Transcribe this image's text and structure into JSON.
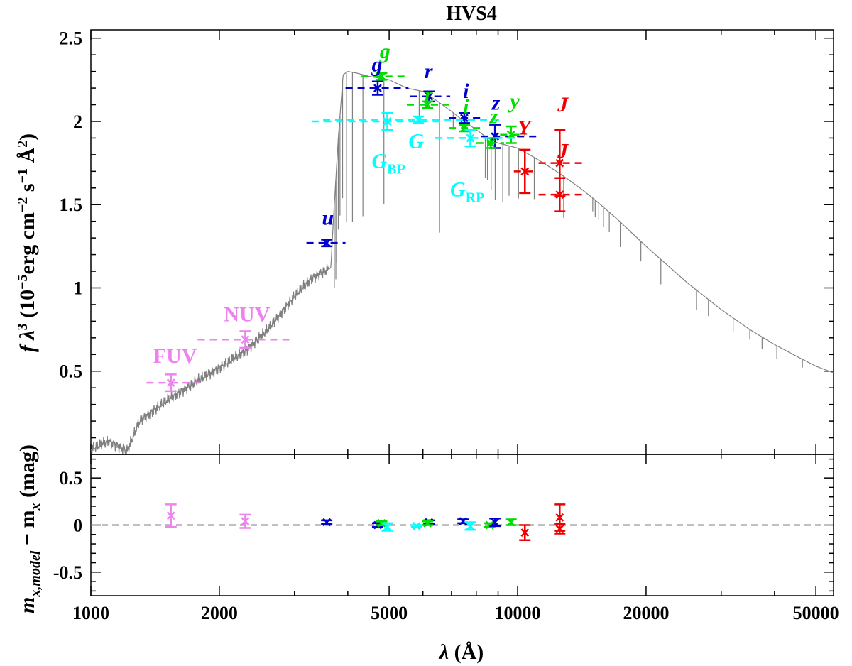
{
  "chart_data": [
    {
      "type": "line",
      "title": "HVS4",
      "xlabel": "λ (Å)",
      "ylabel": "f λ³ (10⁻⁵erg cm⁻² s⁻¹ Å²)",
      "xscale": "log",
      "xlim": [
        1000,
        55000
      ],
      "ylim": [
        0,
        2.55
      ],
      "xticks": [
        1000,
        2000,
        5000,
        10000,
        20000,
        50000
      ],
      "xtick_labels": [
        "1000",
        "2000",
        "5000",
        "10000",
        "20000",
        "50000"
      ],
      "yticks": [
        0.5,
        1,
        1.5,
        2,
        2.5
      ],
      "ytick_labels": [
        "0.5",
        "1",
        "1.5",
        "2",
        "2.5"
      ],
      "model_spectrum": {
        "name": "model",
        "color": "#808080",
        "x": [
          1000,
          1100,
          1216,
          1300,
          1500,
          1800,
          2000,
          2300,
          2600,
          3000,
          3300,
          3650,
          3700,
          3800,
          3900,
          4000,
          4200,
          4500,
          5000,
          5500,
          6000,
          6500,
          7000,
          7500,
          8000,
          8500,
          9000,
          10000,
          11000,
          12000,
          13000,
          14000,
          15000,
          17000,
          20000,
          25000,
          30000,
          35000,
          40000,
          45000,
          50000,
          55000
        ],
        "y": [
          0.03,
          0.08,
          0.02,
          0.2,
          0.32,
          0.45,
          0.52,
          0.62,
          0.75,
          0.95,
          1.06,
          1.12,
          1.4,
          1.9,
          2.28,
          2.3,
          2.29,
          2.27,
          2.25,
          2.2,
          2.18,
          2.12,
          2.06,
          2.0,
          1.95,
          1.9,
          1.87,
          1.84,
          1.78,
          1.72,
          1.66,
          1.6,
          1.54,
          1.42,
          1.25,
          1.03,
          0.87,
          0.75,
          0.66,
          0.59,
          0.53,
          0.49
        ]
      },
      "photometry": [
        {
          "band": "FUV",
          "color": "#ee82ee",
          "x": 1540,
          "y": 0.43,
          "yerr": 0.05,
          "xerr": [
            1350,
            1800
          ]
        },
        {
          "band": "NUV",
          "color": "#ee82ee",
          "x": 2300,
          "y": 0.69,
          "yerr": 0.05,
          "xerr": [
            1780,
            2980
          ]
        },
        {
          "band": "u",
          "color": "#0000cc",
          "x": 3570,
          "y": 1.27,
          "yerr": 0.02,
          "xerr": [
            3200,
            3950
          ]
        },
        {
          "band": "g",
          "color": "#0000cc",
          "x": 4700,
          "y": 2.2,
          "yerr": 0.04,
          "xerr": [
            3950,
            5550
          ]
        },
        {
          "band": "g",
          "color": "#00dd00",
          "x": 4800,
          "y": 2.27,
          "yerr": 0.02,
          "xerr": [
            4300,
            5450
          ]
        },
        {
          "band": "r",
          "color": "#0000cc",
          "x": 6200,
          "y": 2.15,
          "yerr": 0.03,
          "xerr": [
            5600,
            6950
          ]
        },
        {
          "band": "r",
          "color": "#00dd00",
          "x": 6150,
          "y": 2.1,
          "yerr": 0.02,
          "xerr": [
            5500,
            6900
          ]
        },
        {
          "band": "i",
          "color": "#0000cc",
          "x": 7500,
          "y": 2.02,
          "yerr": 0.03,
          "xerr": [
            6900,
            8250
          ]
        },
        {
          "band": "i",
          "color": "#00dd00",
          "x": 7500,
          "y": 1.96,
          "yerr": 0.02,
          "xerr": [
            6900,
            8250
          ]
        },
        {
          "band": "z",
          "color": "#0000cc",
          "x": 8850,
          "y": 1.91,
          "yerr": 0.07,
          "xerr": [
            8200,
            11300
          ]
        },
        {
          "band": "z",
          "color": "#00dd00",
          "x": 8650,
          "y": 1.87,
          "yerr": 0.03,
          "xerr": [
            8000,
            9300
          ]
        },
        {
          "band": "y",
          "color": "#00dd00",
          "x": 9650,
          "y": 1.92,
          "yerr": 0.05,
          "xerr": [
            9100,
            10400
          ]
        },
        {
          "band": "G_BP",
          "color": "#00ffff",
          "x": 4950,
          "y": 2.0,
          "yerr": 0.05,
          "xerr": [
            3300,
            6700
          ]
        },
        {
          "band": "G",
          "color": "#00ffff",
          "x": 5850,
          "y": 2.01,
          "yerr": 0.02,
          "xerr": [
            3500,
            9300
          ]
        },
        {
          "band": "G_RP",
          "color": "#00ffff",
          "x": 7750,
          "y": 1.9,
          "yerr": 0.05,
          "xerr": [
            6400,
            10000
          ]
        },
        {
          "band": "Y",
          "color": "#ee0000",
          "x": 10400,
          "y": 1.7,
          "yerr": 0.13,
          "xerr": [
            9800,
            11000
          ]
        },
        {
          "band": "J",
          "color": "#ee0000",
          "x": 12550,
          "y": 1.75,
          "yerr": 0.2,
          "xerr": [
            11200,
            14300
          ]
        },
        {
          "band": "J",
          "color": "#ee0000",
          "x": 12550,
          "y": 1.56,
          "yerr": 0.1,
          "xerr": [
            11200,
            14300
          ]
        }
      ],
      "band_labels": [
        {
          "text": "FUV",
          "color": "#ee82ee",
          "x": 1400,
          "y": 0.55,
          "italic": false
        },
        {
          "text": "NUV",
          "color": "#ee82ee",
          "x": 2050,
          "y": 0.8,
          "italic": false
        },
        {
          "text": "u",
          "color": "#0000cc",
          "x": 3480,
          "y": 1.38,
          "italic": true
        },
        {
          "text": "g",
          "color": "#0000cc",
          "x": 4550,
          "y": 2.3,
          "italic": true
        },
        {
          "text": "g",
          "color": "#00dd00",
          "x": 4750,
          "y": 2.38,
          "italic": true
        },
        {
          "text": "r",
          "color": "#0000cc",
          "x": 6050,
          "y": 2.26,
          "italic": true
        },
        {
          "text": "r",
          "color": "#00dd00",
          "x": 6050,
          "y": 2.12,
          "italic": true
        },
        {
          "text": "i",
          "color": "#0000cc",
          "x": 7450,
          "y": 2.14,
          "italic": true
        },
        {
          "text": "i",
          "color": "#00dd00",
          "x": 7450,
          "y": 2.05,
          "italic": true
        },
        {
          "text": "z",
          "color": "#0000cc",
          "x": 8700,
          "y": 2.07,
          "italic": true
        },
        {
          "text": "z",
          "color": "#00dd00",
          "x": 8600,
          "y": 1.99,
          "italic": true
        },
        {
          "text": "y",
          "color": "#00dd00",
          "x": 9600,
          "y": 2.08,
          "italic": true
        },
        {
          "text": "G",
          "sub": "BP",
          "color": "#00ffff",
          "x": 4550,
          "y": 1.72,
          "italic": true
        },
        {
          "text": "G",
          "sub": "",
          "color": "#00ffff",
          "x": 5550,
          "y": 1.84,
          "italic": true
        },
        {
          "text": "G",
          "sub": "RP",
          "color": "#00ffff",
          "x": 6950,
          "y": 1.55,
          "italic": true
        },
        {
          "text": "Y",
          "color": "#ee0000",
          "x": 10000,
          "y": 1.92,
          "italic": true
        },
        {
          "text": "J",
          "color": "#ee0000",
          "x": 12400,
          "y": 2.06,
          "italic": true
        },
        {
          "text": "J",
          "color": "#ee0000",
          "x": 12400,
          "y": 1.78,
          "italic": true
        }
      ]
    },
    {
      "type": "scatter",
      "title": "",
      "xlabel": "λ (Å)",
      "ylabel": "m x,model − m x (mag)",
      "ylabel_main": "m",
      "ylabel_sub1": "x,model",
      "ylabel_mid": " − m",
      "ylabel_sub2": "x",
      "ylabel_end": " (mag)",
      "xscale": "log",
      "xlim": [
        1000,
        55000
      ],
      "ylim": [
        -0.75,
        0.75
      ],
      "yticks": [
        -0.5,
        0,
        0.5
      ],
      "ytick_labels": [
        "-0.5",
        "0",
        "0.5"
      ],
      "zero_line": 0,
      "residuals": [
        {
          "band": "FUV",
          "color": "#ee82ee",
          "x": 1540,
          "y": 0.1,
          "yerr": 0.12
        },
        {
          "band": "NUV",
          "color": "#ee82ee",
          "x": 2300,
          "y": 0.04,
          "yerr": 0.07
        },
        {
          "band": "u",
          "color": "#0000cc",
          "x": 3570,
          "y": 0.03,
          "yerr": 0.02
        },
        {
          "band": "g",
          "color": "#0000cc",
          "x": 4700,
          "y": 0.0,
          "yerr": 0.02
        },
        {
          "band": "g",
          "color": "#00dd00",
          "x": 4800,
          "y": 0.02,
          "yerr": 0.02
        },
        {
          "band": "G_BP",
          "color": "#00ffff",
          "x": 4950,
          "y": -0.02,
          "yerr": 0.04
        },
        {
          "band": "G",
          "color": "#00ffff",
          "x": 5800,
          "y": -0.01,
          "yerr": 0.01
        },
        {
          "band": "r",
          "color": "#0000cc",
          "x": 6200,
          "y": 0.03,
          "yerr": 0.02
        },
        {
          "band": "r",
          "color": "#00dd00",
          "x": 6150,
          "y": 0.02,
          "yerr": 0.02
        },
        {
          "band": "i",
          "color": "#0000cc",
          "x": 7450,
          "y": 0.04,
          "yerr": 0.02
        },
        {
          "band": "G_RP",
          "color": "#00ffff",
          "x": 7750,
          "y": -0.01,
          "yerr": 0.04
        },
        {
          "band": "z",
          "color": "#00dd00",
          "x": 8600,
          "y": 0.0,
          "yerr": 0.02
        },
        {
          "band": "z",
          "color": "#0000cc",
          "x": 8850,
          "y": 0.03,
          "yerr": 0.04
        },
        {
          "band": "y",
          "color": "#00dd00",
          "x": 9650,
          "y": 0.03,
          "yerr": 0.03
        },
        {
          "band": "Y",
          "color": "#ee0000",
          "x": 10400,
          "y": -0.08,
          "yerr": 0.08
        },
        {
          "band": "J",
          "color": "#ee0000",
          "x": 12550,
          "y": 0.08,
          "yerr": 0.14
        },
        {
          "band": "J",
          "color": "#ee0000",
          "x": 12550,
          "y": -0.04,
          "yerr": 0.05
        }
      ]
    }
  ]
}
